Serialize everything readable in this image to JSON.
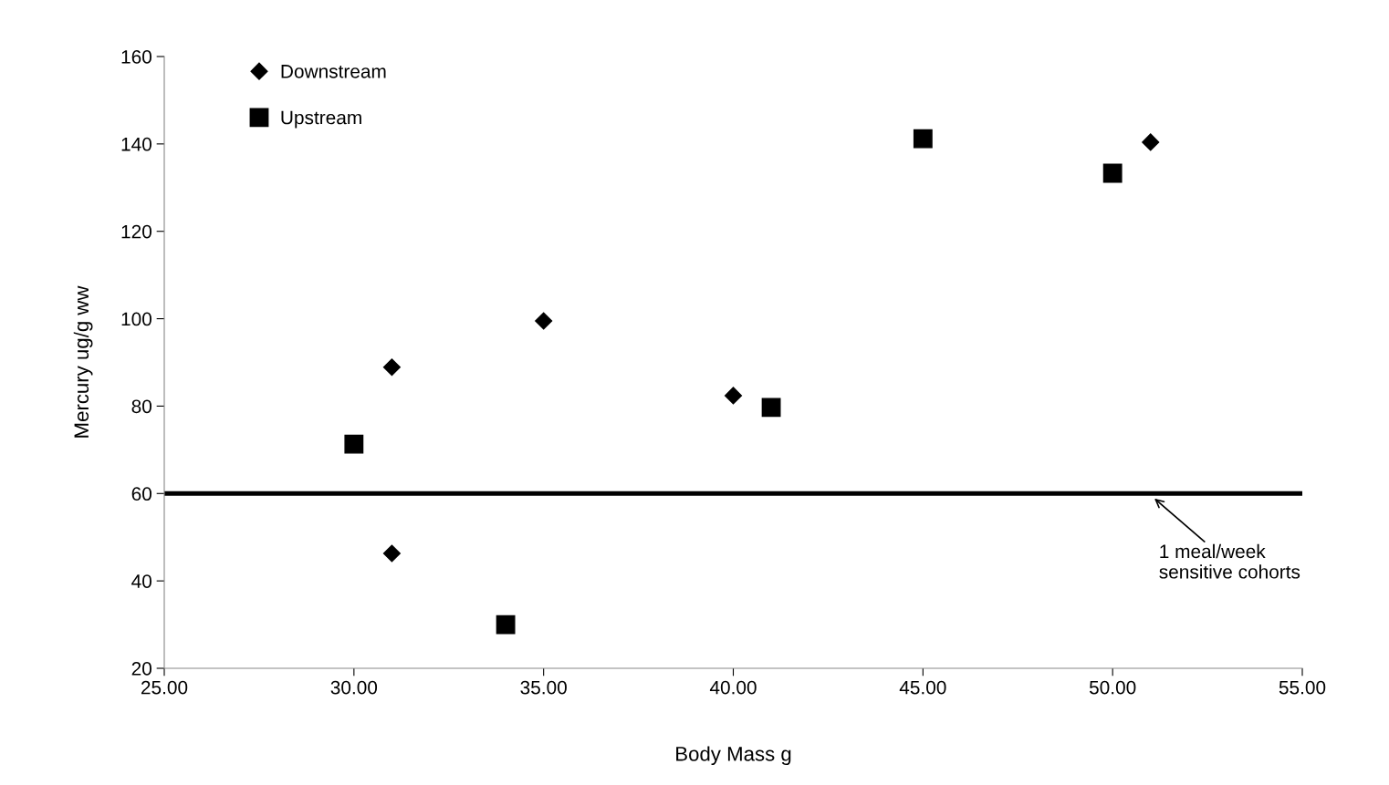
{
  "chart_data": {
    "type": "scatter",
    "xlabel": "Body Mass g",
    "ylabel": "Mercury ug/g ww",
    "xlim": [
      25,
      55
    ],
    "xticks": [
      {
        "value": 25,
        "label": "25.00"
      },
      {
        "value": 30,
        "label": "30.00"
      },
      {
        "value": 35,
        "label": "35.00"
      },
      {
        "value": 40,
        "label": "40.00"
      },
      {
        "value": 45,
        "label": "45.00"
      },
      {
        "value": 50,
        "label": "50.00"
      },
      {
        "value": 55,
        "label": "55.00"
      }
    ],
    "ylim": [
      20,
      160
    ],
    "yticks": [
      20,
      40,
      60,
      80,
      100,
      120,
      140,
      160
    ],
    "grid": false,
    "legend": "top left",
    "series": [
      {
        "name": "Downstream",
        "color": "#000000",
        "marker": "diamond",
        "x": [
          31,
          35,
          40,
          31,
          51
        ],
        "values": [
          88.9,
          99.5,
          82.4,
          46.3,
          140.4
        ]
      },
      {
        "name": "Upstream",
        "color": "#000000",
        "marker": "square",
        "x": [
          30,
          34,
          41,
          45,
          50
        ],
        "values": [
          71.3,
          30.0,
          79.7,
          141.2,
          133.3
        ]
      }
    ],
    "ref_lines": [
      {
        "axis": "y",
        "value": 60,
        "color": "#000000",
        "line_style": "solid",
        "label": "1 meal/week\nsensitive cohorts"
      }
    ]
  }
}
